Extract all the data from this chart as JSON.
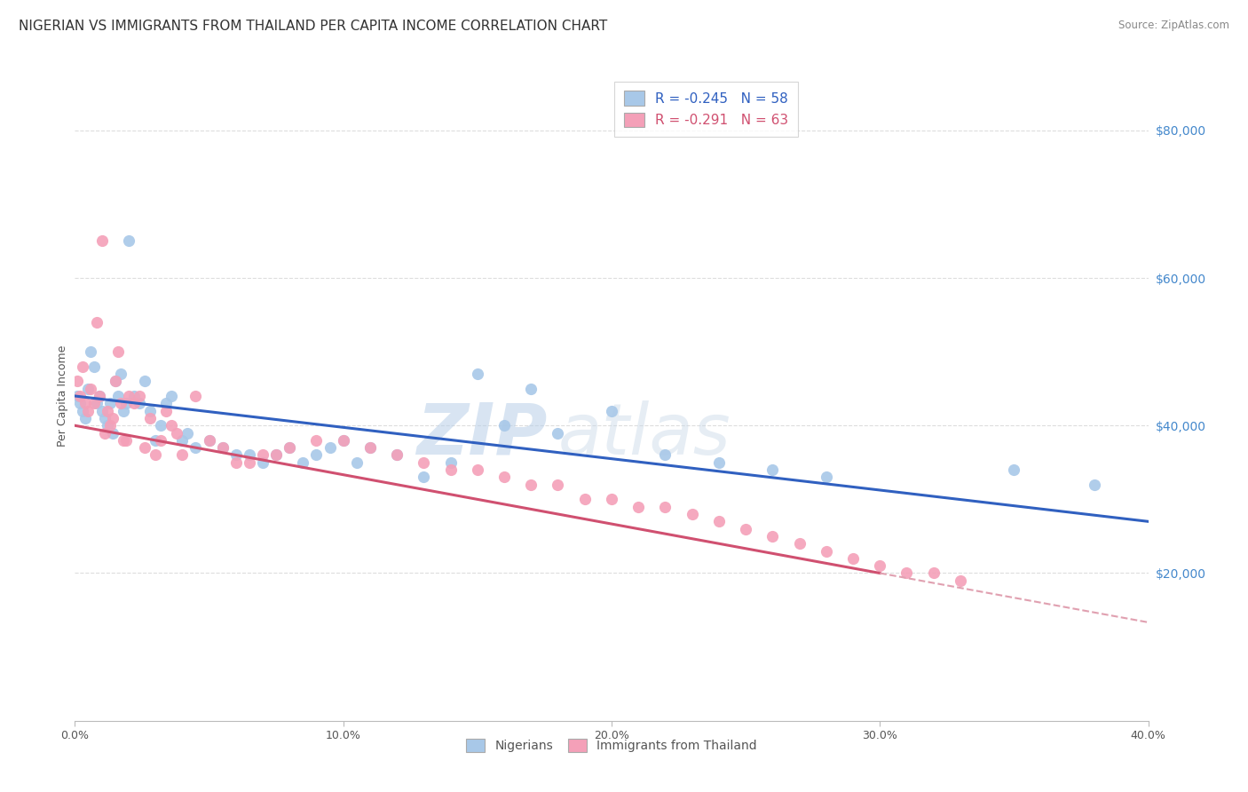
{
  "title": "NIGERIAN VS IMMIGRANTS FROM THAILAND PER CAPITA INCOME CORRELATION CHART",
  "source": "Source: ZipAtlas.com",
  "ylabel": "Per Capita Income",
  "xlabel_ticks": [
    "0.0%",
    "10.0%",
    "20.0%",
    "30.0%",
    "40.0%"
  ],
  "xlabel_vals": [
    0.0,
    0.1,
    0.2,
    0.3,
    0.4
  ],
  "ytick_labels": [
    "$20,000",
    "$40,000",
    "$60,000",
    "$80,000"
  ],
  "ytick_vals": [
    20000,
    40000,
    60000,
    80000
  ],
  "xlim": [
    0.0,
    0.4
  ],
  "ylim": [
    0,
    88000
  ],
  "legend_label1": "R = -0.245   N = 58",
  "legend_label2": "R = -0.291   N = 63",
  "legend_series1": "Nigerians",
  "legend_series2": "Immigrants from Thailand",
  "blue_color": "#a8c8e8",
  "pink_color": "#f4a0b8",
  "blue_line_color": "#3060c0",
  "pink_line_color": "#d05070",
  "pink_dashed_color": "#e0a0b0",
  "watermark_zip": "ZIP",
  "watermark_atlas": "atlas",
  "title_fontsize": 11,
  "axis_label_fontsize": 9,
  "tick_fontsize": 9,
  "nigerians_x": [
    0.001,
    0.002,
    0.003,
    0.004,
    0.005,
    0.006,
    0.007,
    0.008,
    0.009,
    0.01,
    0.011,
    0.012,
    0.013,
    0.014,
    0.015,
    0.016,
    0.017,
    0.018,
    0.019,
    0.02,
    0.022,
    0.024,
    0.026,
    0.028,
    0.03,
    0.032,
    0.034,
    0.036,
    0.04,
    0.042,
    0.045,
    0.05,
    0.055,
    0.06,
    0.065,
    0.07,
    0.075,
    0.08,
    0.085,
    0.09,
    0.095,
    0.1,
    0.105,
    0.11,
    0.12,
    0.13,
    0.14,
    0.15,
    0.16,
    0.17,
    0.18,
    0.2,
    0.22,
    0.24,
    0.26,
    0.28,
    0.35,
    0.38
  ],
  "nigerians_y": [
    44000,
    43000,
    42000,
    41000,
    45000,
    50000,
    48000,
    43000,
    44000,
    42000,
    41000,
    40000,
    43000,
    39000,
    46000,
    44000,
    47000,
    42000,
    43000,
    65000,
    44000,
    43000,
    46000,
    42000,
    38000,
    40000,
    43000,
    44000,
    38000,
    39000,
    37000,
    38000,
    37000,
    36000,
    36000,
    35000,
    36000,
    37000,
    35000,
    36000,
    37000,
    38000,
    35000,
    37000,
    36000,
    33000,
    35000,
    47000,
    40000,
    45000,
    39000,
    42000,
    36000,
    35000,
    34000,
    33000,
    34000,
    32000
  ],
  "thailand_x": [
    0.001,
    0.002,
    0.003,
    0.004,
    0.005,
    0.006,
    0.007,
    0.008,
    0.009,
    0.01,
    0.011,
    0.012,
    0.013,
    0.014,
    0.015,
    0.016,
    0.017,
    0.018,
    0.019,
    0.02,
    0.022,
    0.024,
    0.026,
    0.028,
    0.03,
    0.032,
    0.034,
    0.036,
    0.038,
    0.04,
    0.045,
    0.05,
    0.055,
    0.06,
    0.065,
    0.07,
    0.075,
    0.08,
    0.09,
    0.1,
    0.11,
    0.12,
    0.13,
    0.14,
    0.15,
    0.16,
    0.17,
    0.18,
    0.19,
    0.2,
    0.21,
    0.22,
    0.23,
    0.24,
    0.25,
    0.26,
    0.27,
    0.28,
    0.29,
    0.3,
    0.31,
    0.32,
    0.33
  ],
  "thailand_y": [
    46000,
    44000,
    48000,
    43000,
    42000,
    45000,
    43000,
    54000,
    44000,
    65000,
    39000,
    42000,
    40000,
    41000,
    46000,
    50000,
    43000,
    38000,
    38000,
    44000,
    43000,
    44000,
    37000,
    41000,
    36000,
    38000,
    42000,
    40000,
    39000,
    36000,
    44000,
    38000,
    37000,
    35000,
    35000,
    36000,
    36000,
    37000,
    38000,
    38000,
    37000,
    36000,
    35000,
    34000,
    34000,
    33000,
    32000,
    32000,
    30000,
    30000,
    29000,
    29000,
    28000,
    27000,
    26000,
    25000,
    24000,
    23000,
    22000,
    21000,
    20000,
    20000,
    19000
  ]
}
